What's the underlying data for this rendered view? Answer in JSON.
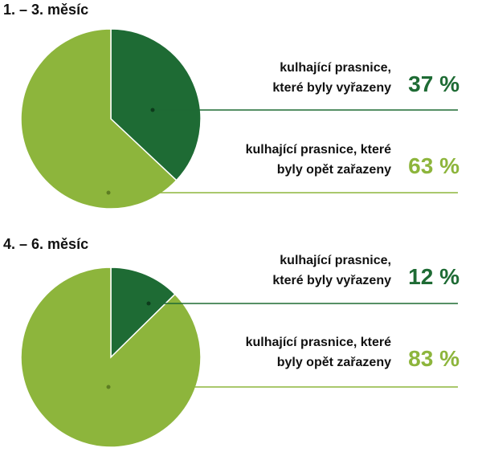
{
  "chart_data": [
    {
      "type": "pie",
      "title": "1. – 3. měsíc",
      "categories": [
        "kulhající prasnice, které byly vyřazeny",
        "kulhající prasnice, které byly opět zařazeny"
      ],
      "values": [
        37,
        63
      ],
      "value_labels": [
        "37 %",
        "63 %"
      ],
      "colors": [
        "#1e6b34",
        "#8db53c"
      ]
    },
    {
      "type": "pie",
      "title": "4. – 6. měsíc",
      "categories": [
        "kulhající prasnice, které byly vyřazeny",
        "kulhající prasnice, které byly opět zařazeny"
      ],
      "values": [
        12,
        83
      ],
      "value_labels": [
        "12 %",
        "83 %"
      ],
      "colors": [
        "#1e6b34",
        "#8db53c"
      ]
    }
  ]
}
